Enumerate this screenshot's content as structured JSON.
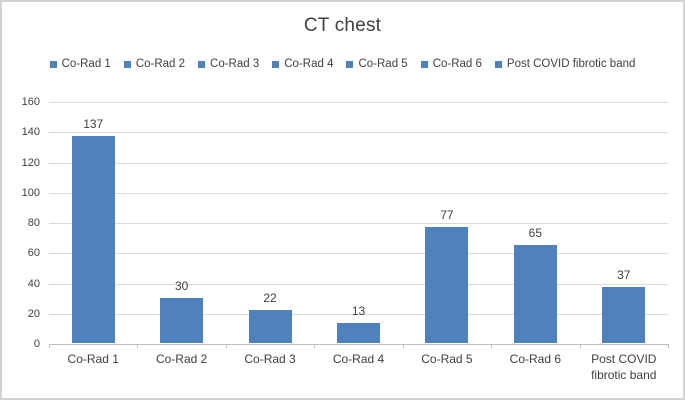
{
  "chart_data": {
    "type": "bar",
    "title": "CT chest",
    "categories": [
      "Co-Rad 1",
      "Co-Rad 2",
      "Co-Rad 3",
      "Co-Rad 4",
      "Co-Rad 5",
      "Co-Rad 6",
      "Post COVID fibrotic band"
    ],
    "values": [
      137,
      30,
      22,
      13,
      77,
      65,
      37
    ],
    "data_labels": [
      "137",
      "30",
      "22",
      "13",
      "77",
      "65",
      "37"
    ],
    "legend_entries": [
      "Co-Rad 1",
      "Co-Rad 2",
      "Co-Rad 3",
      "Co-Rad 4",
      "Co-Rad 5",
      "Co-Rad 6",
      "Post COVID fibrotic band"
    ],
    "legend_position": "top",
    "xlabel": "",
    "ylabel": "",
    "ylim": [
      0,
      160
    ],
    "ytick_step": 20,
    "ytick_labels": [
      "0",
      "20",
      "40",
      "60",
      "80",
      "100",
      "120",
      "140",
      "160"
    ],
    "grid": true,
    "colors": {
      "bar": "#4F81BD",
      "text": "#404040",
      "gridline": "#d9d9d9",
      "axis_line": "#bfbfbf",
      "background": "#ffffff",
      "frame_border": "#d2d2d2"
    }
  }
}
